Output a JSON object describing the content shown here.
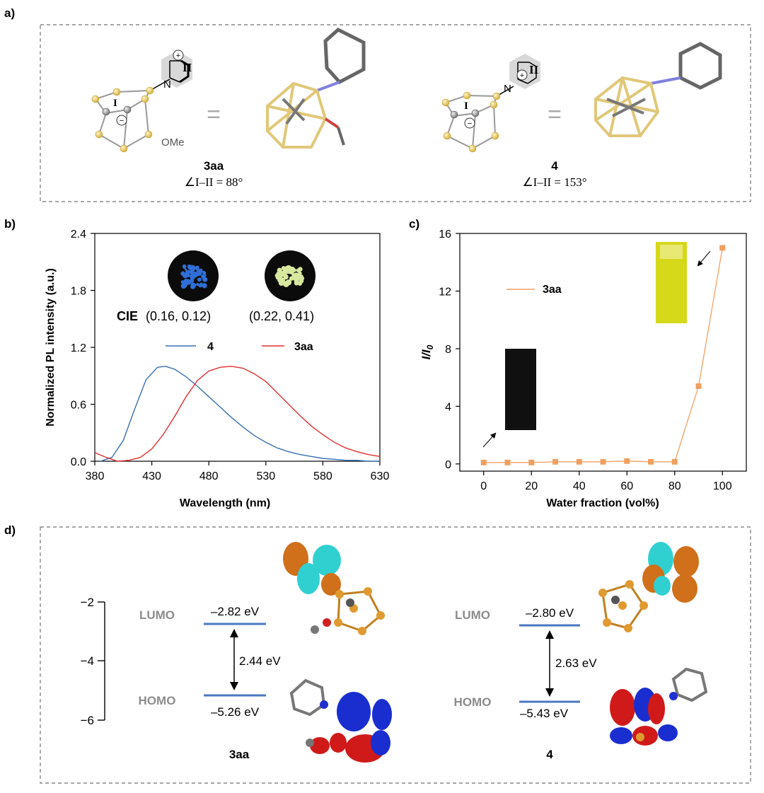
{
  "panel_a": {
    "label": "a)",
    "compound_left": {
      "name": "3aa",
      "angle": "∠I–II = 88°",
      "substituent": "OMe",
      "ring_label": "II",
      "cage_label": "I",
      "equals": "="
    },
    "compound_right": {
      "name": "4",
      "angle": "∠I–II = 153°",
      "ring_label": "II",
      "cage_label": "I",
      "equals": "="
    },
    "atom_n": "N",
    "charge_plus": "+",
    "charge_minus": "−"
  },
  "panel_b": {
    "label": "b)",
    "cie_label": "CIE",
    "cie_4": "(0.16, 0.12)",
    "cie_3aa": "(0.22, 0.41)",
    "colors": {
      "4": "#3a70b0",
      "3aa": "#e03030",
      "sample_4": "#2f6fd6",
      "sample_3aa": "#d8e8a0"
    }
  },
  "panel_c": {
    "label": "c)",
    "colors": {
      "series": "#f0a060",
      "vial_on": "#e0e020",
      "vial_off": "#101010"
    }
  },
  "panel_d": {
    "label": "d)",
    "axis_ticks": [
      "−2",
      "−4",
      "−6"
    ],
    "left": {
      "lumo_label": "LUMO",
      "homo_label": "HOMO",
      "lumo_value": "–2.82 eV",
      "homo_value": "–5.26 eV",
      "gap": "2.44 eV",
      "name": "3aa"
    },
    "right": {
      "lumo_label": "LUMO",
      "homo_label": "HOMO",
      "lumo_value": "–2.80 eV",
      "homo_value": "–5.43 eV",
      "gap": "2.63 eV",
      "name": "4"
    }
  },
  "chart_data": [
    {
      "type": "line",
      "title": "",
      "xlabel": "Wavelength (nm)",
      "ylabel": "Normalized PL intensity (a.u.)",
      "xlim": [
        380,
        630
      ],
      "ylim": [
        0,
        2.4
      ],
      "xticks": [
        380,
        430,
        480,
        530,
        580,
        630
      ],
      "yticks": [
        0.0,
        0.6,
        1.2,
        1.8,
        2.4
      ],
      "ytick_labels": [
        "0.0",
        "0.6",
        "1.2",
        "1.8",
        "2.4"
      ],
      "series": [
        {
          "name": "4",
          "x": [
            385,
            395,
            405,
            415,
            425,
            435,
            442,
            450,
            460,
            470,
            480,
            490,
            500,
            510,
            520,
            530,
            540,
            550,
            560,
            570,
            580,
            590,
            600,
            610,
            620,
            630
          ],
          "values": [
            0.0,
            0.04,
            0.22,
            0.55,
            0.86,
            0.99,
            1.0,
            0.97,
            0.89,
            0.79,
            0.68,
            0.57,
            0.46,
            0.36,
            0.27,
            0.2,
            0.14,
            0.1,
            0.07,
            0.05,
            0.03,
            0.02,
            0.01,
            0.01,
            0.0,
            0.0
          ]
        },
        {
          "name": "3aa",
          "x": [
            380,
            390,
            400,
            410,
            420,
            430,
            440,
            450,
            460,
            470,
            480,
            490,
            500,
            510,
            520,
            530,
            540,
            550,
            560,
            570,
            580,
            590,
            600,
            610,
            620,
            630
          ],
          "values": [
            0.09,
            0.04,
            0.0,
            0.01,
            0.04,
            0.13,
            0.28,
            0.47,
            0.68,
            0.85,
            0.95,
            0.99,
            1.0,
            0.98,
            0.92,
            0.84,
            0.72,
            0.6,
            0.48,
            0.37,
            0.28,
            0.2,
            0.14,
            0.1,
            0.07,
            0.05
          ]
        }
      ]
    },
    {
      "type": "line",
      "title": "",
      "xlabel": "Water fraction (vol%)",
      "ylabel": "I/I0",
      "xlim": [
        -10,
        110
      ],
      "ylim": [
        -0.5,
        16
      ],
      "xticks": [
        0,
        20,
        40,
        60,
        80,
        100
      ],
      "yticks": [
        0,
        4,
        8,
        12,
        16
      ],
      "series": [
        {
          "name": "3aa",
          "x": [
            0,
            10,
            20,
            30,
            40,
            50,
            60,
            70,
            80,
            90,
            100
          ],
          "values": [
            0.1,
            0.1,
            0.1,
            0.15,
            0.15,
            0.15,
            0.2,
            0.15,
            0.15,
            5.4,
            15.0
          ]
        }
      ]
    }
  ]
}
